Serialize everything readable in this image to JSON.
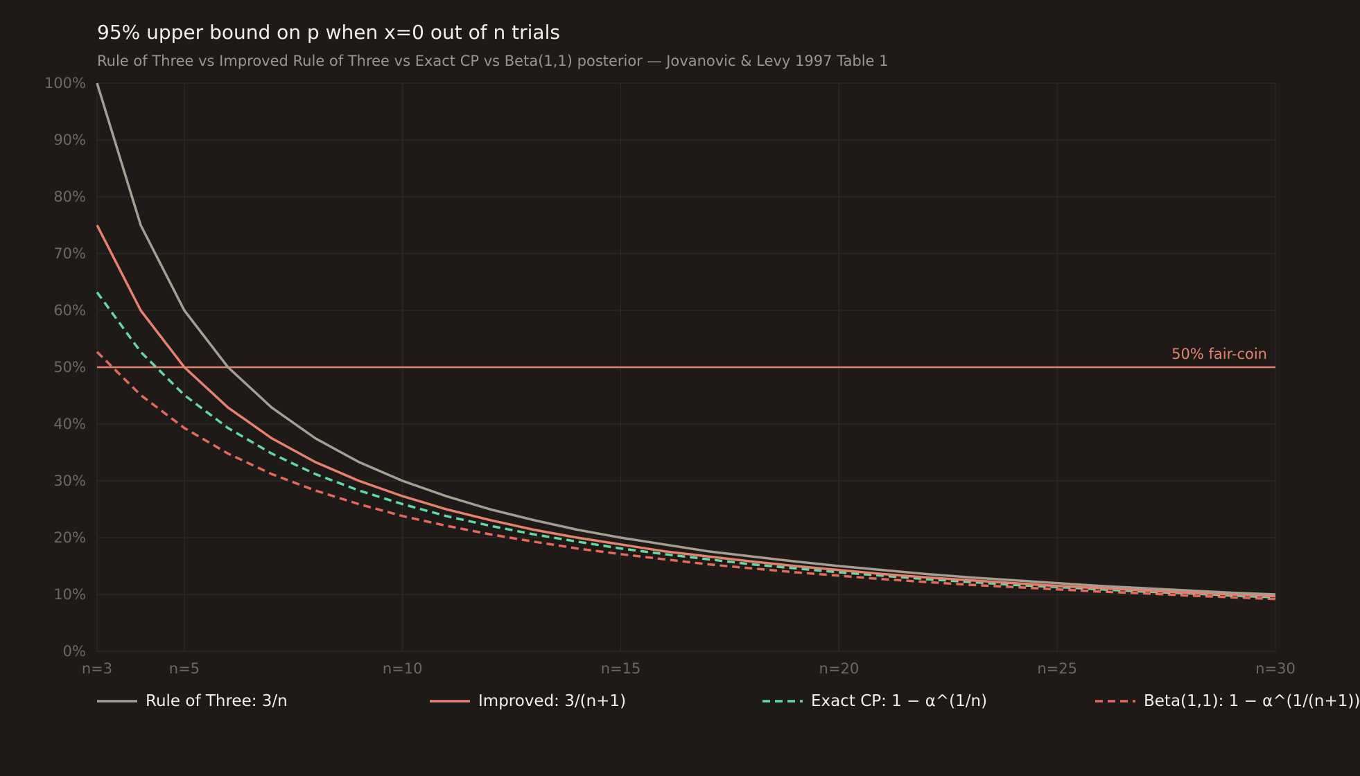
{
  "title": "95% upper bound on p when x=0 out of n trials",
  "subtitle": "Rule of Three vs Improved Rule of Three vs Exact CP vs Beta(1,1) posterior — Jovanovic & Levy 1997 Table 1",
  "colors": {
    "background": "#1e1a18",
    "grid": "#2e2a27",
    "tick_label": "#6e6762",
    "rule_of_three": "#a89d93",
    "improved": "#e8806d",
    "exact_cp": "#5ed9a8",
    "beta": "#e8665a",
    "reference": "#e8806d"
  },
  "chart_data": {
    "type": "line",
    "title": "95% upper bound on p when x=0 out of n trials",
    "subtitle": "Rule of Three vs Improved Rule of Three vs Exact CP vs Beta(1,1) posterior — Jovanovic & Levy 1997 Table 1",
    "x": [
      3,
      4,
      5,
      6,
      7,
      8,
      9,
      10,
      11,
      12,
      13,
      14,
      15,
      16,
      17,
      18,
      19,
      20,
      21,
      22,
      23,
      24,
      25,
      26,
      27,
      28,
      29,
      30
    ],
    "xlim": [
      3,
      30
    ],
    "ylim": [
      0,
      100
    ],
    "x_ticks": [
      3,
      5,
      10,
      15,
      20,
      25,
      30
    ],
    "x_tick_labels": [
      "n=3",
      "n=5",
      "n=10",
      "n=15",
      "n=20",
      "n=25",
      "n=30"
    ],
    "y_ticks": [
      0,
      10,
      20,
      30,
      40,
      50,
      60,
      70,
      80,
      90,
      100
    ],
    "y_tick_labels": [
      "0%",
      "10%",
      "20%",
      "30%",
      "40%",
      "50%",
      "60%",
      "70%",
      "80%",
      "90%",
      "100%"
    ],
    "grid": true,
    "legend_position": "bottom",
    "series": [
      {
        "name": "Rule of Three: 3/n",
        "color": "#a89d93",
        "dashed": false,
        "values": [
          100.0,
          75.0,
          60.0,
          50.0,
          42.9,
          37.5,
          33.3,
          30.0,
          27.3,
          25.0,
          23.1,
          21.4,
          20.0,
          18.8,
          17.6,
          16.7,
          15.8,
          15.0,
          14.3,
          13.6,
          13.0,
          12.5,
          12.0,
          11.5,
          11.1,
          10.7,
          10.3,
          10.0
        ]
      },
      {
        "name": "Improved: 3/(n+1)",
        "color": "#e8806d",
        "dashed": false,
        "values": [
          75.0,
          60.0,
          50.0,
          42.9,
          37.5,
          33.3,
          30.0,
          27.3,
          25.0,
          23.1,
          21.4,
          20.0,
          18.8,
          17.6,
          16.7,
          15.8,
          15.0,
          14.3,
          13.6,
          13.0,
          12.5,
          12.0,
          11.5,
          11.1,
          10.7,
          10.3,
          10.0,
          9.7
        ]
      },
      {
        "name": "Exact CP: 1 − α^(1/n)",
        "color": "#5ed9a8",
        "dashed": true,
        "values": [
          63.2,
          52.7,
          45.1,
          39.3,
          34.8,
          31.2,
          28.3,
          25.9,
          23.8,
          22.1,
          20.6,
          19.3,
          18.1,
          17.1,
          16.2,
          15.3,
          14.6,
          13.9,
          13.3,
          12.7,
          12.2,
          11.7,
          11.3,
          10.9,
          10.5,
          10.2,
          9.8,
          9.5
        ]
      },
      {
        "name": "Beta(1,1): 1 − α^(1/(n+1))",
        "color": "#e8665a",
        "dashed": true,
        "values": [
          52.7,
          45.1,
          39.3,
          34.8,
          31.2,
          28.3,
          25.9,
          23.8,
          22.1,
          20.6,
          19.3,
          18.1,
          17.1,
          16.2,
          15.3,
          14.6,
          13.9,
          13.3,
          12.7,
          12.2,
          11.7,
          11.3,
          10.9,
          10.5,
          10.2,
          9.8,
          9.5,
          9.2
        ]
      }
    ],
    "reference_line": {
      "y": 50,
      "label": "50% fair-coin",
      "color": "#e8806d"
    }
  }
}
